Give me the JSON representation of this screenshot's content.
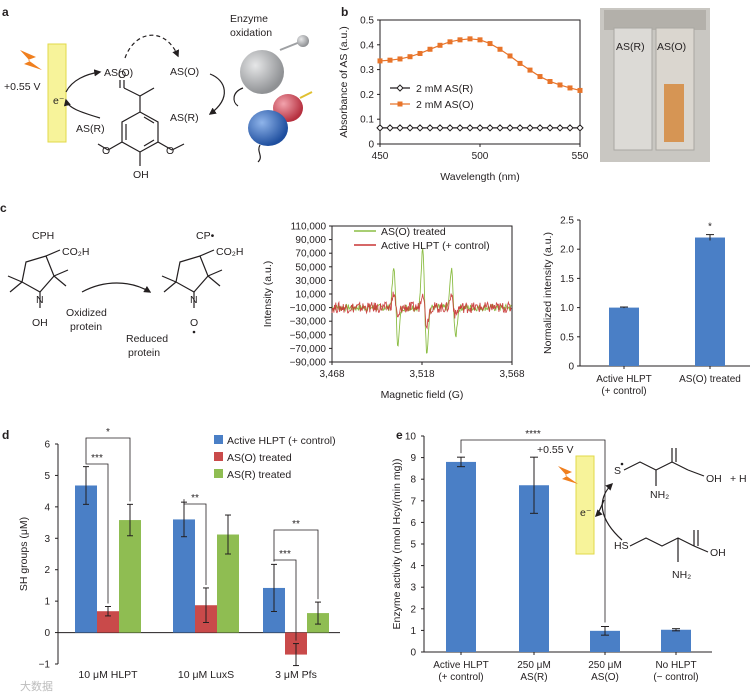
{
  "panels": {
    "a": "a",
    "b": "b",
    "c": "c",
    "d": "d",
    "e": "e"
  },
  "panel_a": {
    "voltage": "+0.55 V",
    "electron": "e⁻",
    "as_o_left": "AS(O)",
    "as_r_left": "AS(R)",
    "as_o_right": "AS(O)",
    "as_r_right": "AS(R)",
    "enzyme_oxidation_1": "Enzyme",
    "enzyme_oxidation_2": "oxidation",
    "colors": {
      "electrode": "#f7f39a",
      "bolt": "#f07f1e",
      "sphere_grey": "#9ea0a3",
      "sphere_red": "#d24a5a",
      "sphere_blue": "#2d63b5"
    }
  },
  "panel_b_photo": {
    "left_label": "AS(R)",
    "right_label": "AS(O)"
  },
  "panel_c_chem": {
    "cph": "CPH",
    "cp_dot": "CP•",
    "co2h_1": "CO₂H",
    "co2h_2": "CO₂H",
    "n_1": "N",
    "oh": "OH",
    "n_2": "N",
    "o_dot": "O",
    "oxidized_1": "Oxidized",
    "oxidized_2": "protein",
    "reduced_1": "Reduced",
    "reduced_2": "protein"
  },
  "panel_e_chem": {
    "voltage": "+0.55 V",
    "electron": "e⁻",
    "s_dot": "S",
    "oh_1": "OH",
    "nh2_1": "NH₂",
    "plus_h": "+ H",
    "hs": "HS",
    "oh_2": "OH",
    "nh2_2": "NH₂"
  },
  "watermark": "大数据",
  "chart_data": [
    {
      "id": "b",
      "type": "line",
      "xlabel": "Wavelength (nm)",
      "ylabel": "Absorbance of AS (a.u.)",
      "xlim": [
        450,
        550
      ],
      "ylim": [
        0,
        0.5
      ],
      "xticks": [
        "450",
        "500",
        "550"
      ],
      "yticks": [
        "0",
        "0.1",
        "0.2",
        "0.3",
        "0.4",
        "0.5"
      ],
      "legend_position": "center-left",
      "series": [
        {
          "name": "2 mM AS(R)",
          "color": "#231f20",
          "marker": "diamond",
          "x": [
            450,
            455,
            460,
            465,
            470,
            475,
            480,
            485,
            490,
            495,
            500,
            505,
            510,
            515,
            520,
            525,
            530,
            535,
            540,
            545,
            550
          ],
          "y": [
            0.065,
            0.065,
            0.065,
            0.065,
            0.065,
            0.065,
            0.065,
            0.065,
            0.065,
            0.065,
            0.065,
            0.065,
            0.065,
            0.065,
            0.065,
            0.065,
            0.065,
            0.065,
            0.065,
            0.065,
            0.065
          ]
        },
        {
          "name": "2 mM AS(O)",
          "color": "#e8742a",
          "marker": "square",
          "x": [
            450,
            455,
            460,
            465,
            470,
            475,
            480,
            485,
            490,
            495,
            500,
            505,
            510,
            515,
            520,
            525,
            530,
            535,
            540,
            545,
            550
          ],
          "y": [
            0.335,
            0.338,
            0.343,
            0.352,
            0.365,
            0.382,
            0.398,
            0.412,
            0.42,
            0.424,
            0.42,
            0.405,
            0.382,
            0.355,
            0.325,
            0.298,
            0.272,
            0.252,
            0.238,
            0.226,
            0.216
          ]
        }
      ]
    },
    {
      "id": "c_epr",
      "type": "line",
      "xlabel": "Magnetic field (G)",
      "ylabel": "Intensity (a.u.)",
      "xlim": [
        3468,
        3568
      ],
      "ylim": [
        -90000,
        110000
      ],
      "xticks": [
        "3,468",
        "3,518",
        "3,568"
      ],
      "yticks": [
        "110,000",
        "90,000",
        "70,000",
        "50,000",
        "30,000",
        "10,000",
        "−10,000",
        "−30,000",
        "−50,000",
        "−70,000",
        "−90,000"
      ],
      "legend_position": "top-left",
      "series": [
        {
          "name": "AS(O) treated",
          "color": "#8cbd45",
          "x": [
            3500.5,
            3502.5,
            3504.5,
            3516.5,
            3518.5,
            3520.5,
            3532.5,
            3534.5,
            3536.5
          ],
          "y": [
            -10000,
            58000,
            -74000,
            -10000,
            90000,
            -88000,
            -10000,
            55000,
            -62000
          ]
        },
        {
          "name": "Active HLPT (+ control)",
          "color": "#c93535",
          "x": [
            3500.5,
            3502.5,
            3504.5,
            3516.5,
            3518.5,
            3520.5,
            3532.5,
            3534.5,
            3536.5
          ],
          "y": [
            -10000,
            14000,
            -30000,
            -10000,
            20000,
            -40000,
            -10000,
            12000,
            -24000
          ]
        }
      ]
    },
    {
      "id": "c_bar",
      "type": "bar",
      "categories": [
        "Active HLPT\n(+ control)",
        "AS(O) treated"
      ],
      "values": [
        1.0,
        2.2
      ],
      "errors": [
        0.01,
        0.05
      ],
      "annotations": [
        "",
        "*"
      ],
      "ylabel": "Normalized intensity (a.u.)",
      "ylim": [
        0,
        2.5
      ],
      "yticks": [
        "0",
        "0.5",
        "1.0",
        "1.5",
        "2.0",
        "2.5"
      ],
      "color": "#4a7fc6"
    },
    {
      "id": "d",
      "type": "bar",
      "categories": [
        "10 μM HLPT",
        "10 μM LuxS",
        "3 μM Pfs"
      ],
      "ylabel": "SH groups (μM)",
      "ylim": [
        -1,
        6
      ],
      "yticks": [
        "−1",
        "0",
        "1",
        "2",
        "3",
        "4",
        "5",
        "6"
      ],
      "legend_position": "top-right",
      "series": [
        {
          "name": "Active HLPT (+ control)",
          "color": "#4a7fc6",
          "values": [
            4.68,
            3.6,
            1.42
          ],
          "errors": [
            0.6,
            0.55,
            0.75
          ]
        },
        {
          "name": "AS(O) treated",
          "color": "#c94a4a",
          "values": [
            0.68,
            0.87,
            -0.7
          ],
          "errors": [
            0.15,
            0.55,
            0.35
          ]
        },
        {
          "name": "AS(R) treated",
          "color": "#8fbd52",
          "values": [
            3.58,
            3.12,
            0.62
          ],
          "errors": [
            0.5,
            0.62,
            0.35
          ]
        }
      ],
      "significance": [
        "*",
        "***",
        "**",
        "**",
        "***"
      ]
    },
    {
      "id": "e",
      "type": "bar",
      "categories": [
        "Active HLPT\n(+ control)",
        "250 μM\nAS(R)",
        "250 μM\nAS(O)",
        "No HLPT\n(− control)"
      ],
      "values": [
        8.8,
        7.72,
        0.98,
        1.03
      ],
      "errors": [
        0.22,
        1.3,
        0.2,
        0.05
      ],
      "ylabel": "Enzyme activity (nmol Hcy/(min mg))",
      "ylim": [
        0,
        10
      ],
      "yticks": [
        "0",
        "1",
        "2",
        "3",
        "4",
        "5",
        "6",
        "7",
        "8",
        "9",
        "10"
      ],
      "significance": [
        "****"
      ],
      "color": "#4a7fc6"
    }
  ]
}
